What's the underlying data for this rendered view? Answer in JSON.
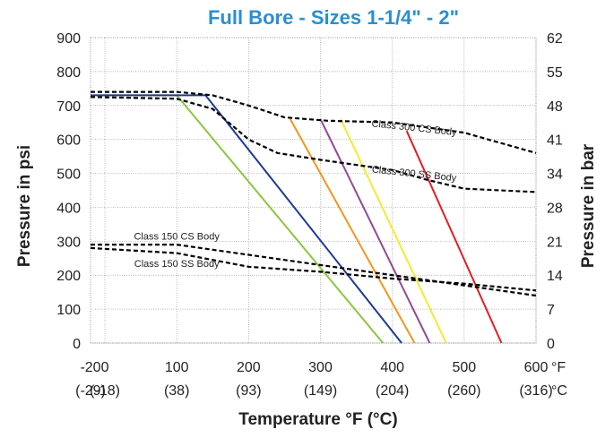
{
  "chart_data": {
    "type": "line",
    "title": "Full Bore - Sizes 1-1/4\" - 2\"",
    "xlabel": "Temperature °F (°C)",
    "ylabel": "Pressure in psi",
    "ylabel_right": "Pressure in bar",
    "xlim": [
      -20,
      600
    ],
    "ylim": [
      0,
      900
    ],
    "grid": true,
    "x_ticks": [
      {
        "value": -20,
        "label": "-20",
        "sublabel": "(-29)"
      },
      {
        "value": 0,
        "label": "0",
        "sublabel": "(-18)"
      },
      {
        "value": 100,
        "label": "100",
        "sublabel": "(38)"
      },
      {
        "value": 200,
        "label": "200",
        "sublabel": "(93)"
      },
      {
        "value": 300,
        "label": "300",
        "sublabel": "(149)"
      },
      {
        "value": 400,
        "label": "400",
        "sublabel": "(204)"
      },
      {
        "value": 500,
        "label": "500",
        "sublabel": "(260)"
      },
      {
        "value": 600,
        "label": "600",
        "sublabel": "(316)"
      }
    ],
    "x_unit_labels": [
      "°F",
      "°C"
    ],
    "y_ticks": [
      0,
      100,
      200,
      300,
      400,
      500,
      600,
      700,
      800,
      900
    ],
    "y_ticks_right": [
      {
        "value": 0,
        "label": "0"
      },
      {
        "value": 100,
        "label": "7"
      },
      {
        "value": 200,
        "label": "14"
      },
      {
        "value": 300,
        "label": "21"
      },
      {
        "value": 400,
        "label": "28"
      },
      {
        "value": 500,
        "label": "34"
      },
      {
        "value": 600,
        "label": "41"
      },
      {
        "value": 700,
        "label": "48"
      },
      {
        "value": 800,
        "label": "55"
      },
      {
        "value": 900,
        "label": "62"
      }
    ],
    "solid_series": [
      {
        "color": "#8cc63f",
        "points": [
          [
            -20,
            730
          ],
          [
            100,
            730
          ],
          [
            387,
            0
          ]
        ]
      },
      {
        "color": "#1f3a93",
        "points": [
          [
            -20,
            730
          ],
          [
            140,
            730
          ],
          [
            413,
            0
          ]
        ]
      },
      {
        "color": "#f7941d",
        "points": [
          [
            258,
            660
          ],
          [
            431,
            0
          ]
        ]
      },
      {
        "color": "#92479c",
        "points": [
          [
            300,
            660
          ],
          [
            452,
            0
          ]
        ]
      },
      {
        "color": "#f2ec2f",
        "points": [
          [
            328,
            660
          ],
          [
            475,
            0
          ]
        ]
      },
      {
        "color": "#e31e24",
        "points": [
          [
            420,
            625
          ],
          [
            552,
            0
          ]
        ]
      }
    ],
    "dashed_series": [
      {
        "label": "Class 300 CS Body",
        "color": "#000000",
        "points": [
          [
            -20,
            740
          ],
          [
            100,
            740
          ],
          [
            150,
            730
          ],
          [
            200,
            700
          ],
          [
            250,
            665
          ],
          [
            310,
            655
          ],
          [
            400,
            650
          ],
          [
            500,
            620
          ],
          [
            600,
            560
          ]
        ]
      },
      {
        "label": "Class 300 SS Body",
        "color": "#000000",
        "points": [
          [
            -20,
            725
          ],
          [
            100,
            720
          ],
          [
            150,
            690
          ],
          [
            200,
            600
          ],
          [
            240,
            560
          ],
          [
            300,
            540
          ],
          [
            400,
            510
          ],
          [
            450,
            480
          ],
          [
            500,
            455
          ],
          [
            600,
            445
          ]
        ]
      },
      {
        "label": "Class 150 CS Body",
        "color": "#000000",
        "points": [
          [
            -20,
            290
          ],
          [
            100,
            290
          ],
          [
            200,
            260
          ],
          [
            300,
            230
          ],
          [
            400,
            200
          ],
          [
            500,
            170
          ],
          [
            600,
            140
          ]
        ]
      },
      {
        "label": "Class 150 SS Body",
        "color": "#000000",
        "points": [
          [
            -20,
            280
          ],
          [
            100,
            265
          ],
          [
            200,
            225
          ],
          [
            300,
            210
          ],
          [
            400,
            190
          ],
          [
            500,
            175
          ],
          [
            600,
            155
          ]
        ]
      }
    ],
    "annotations": [
      {
        "text": "Class 300 CS Body",
        "x": 430,
        "y": 625,
        "angle": 6
      },
      {
        "text": "Class 300 SS Body",
        "x": 430,
        "y": 490,
        "angle": 6
      },
      {
        "text": "Class 150 CS Body",
        "x": 100,
        "y": 305,
        "angle": 0
      },
      {
        "text": "Class 150 SS Body",
        "x": 100,
        "y": 225,
        "angle": 0
      }
    ]
  }
}
